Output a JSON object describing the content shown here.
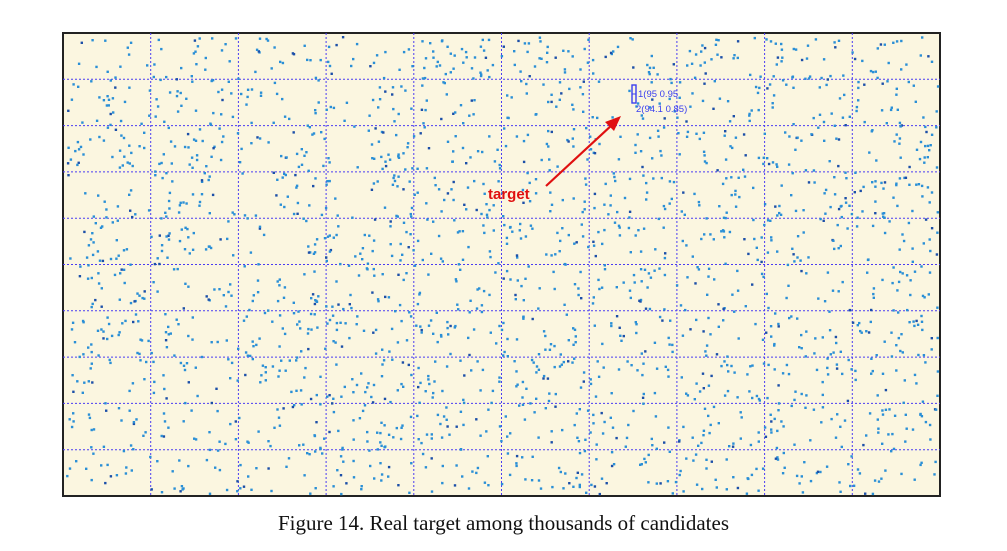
{
  "chart_data": {
    "type": "scatter",
    "title": "",
    "xlabel": "",
    "ylabel": "",
    "grid": true,
    "grid_columns": 10,
    "grid_rows": 10,
    "point_count_description": "thousands of candidates",
    "candidate_seed": 14,
    "candidate_count": 2300,
    "colors": {
      "background": "#fbf6e0",
      "grid": "#4a3cf2",
      "point": "#2a8fd6",
      "point_dark": "#1c4fa8",
      "target_marker": "#3a3ff0",
      "annotation": "#e01010"
    },
    "target": {
      "marker_label_1": "1(95 0.95",
      "marker_label_2": "2(94.1 0.85)"
    },
    "annotation": {
      "label": "target"
    }
  },
  "caption": "Figure 14. Real target among thousands of candidates"
}
